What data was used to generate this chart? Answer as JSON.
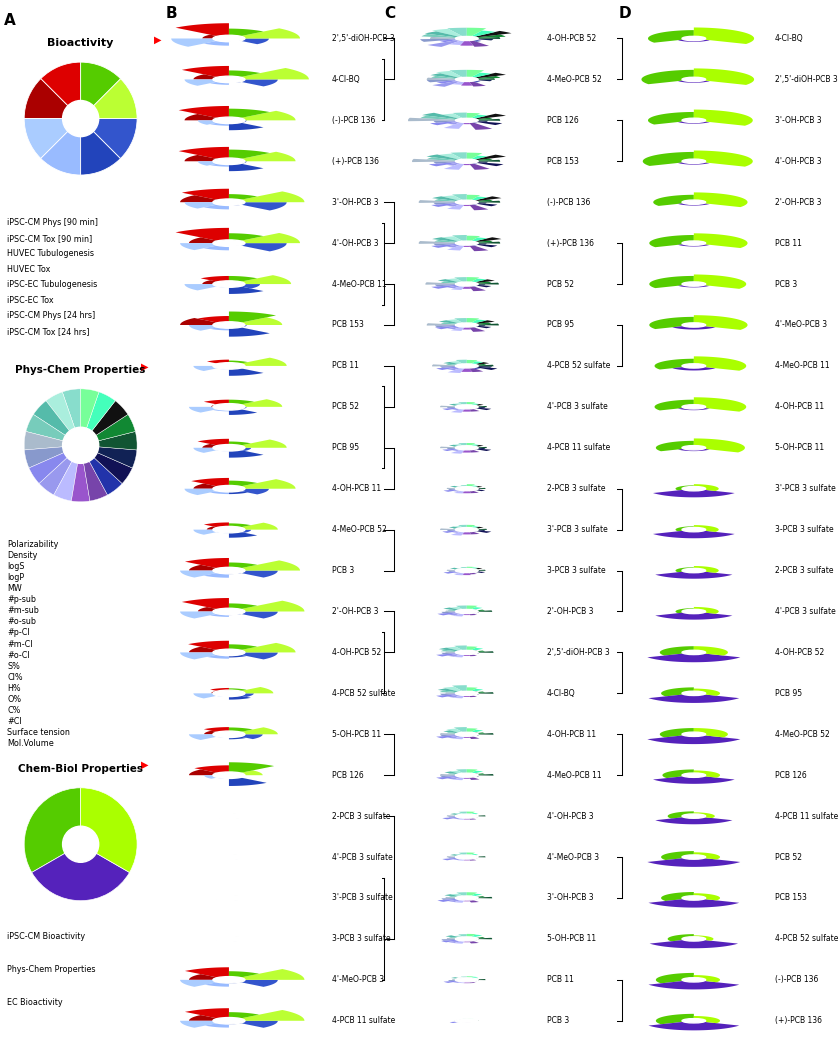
{
  "bioactivity_slices": [
    {
      "label": "iPSC-CM Phys [90 min]",
      "size": 12.5,
      "color": "#DD0000"
    },
    {
      "label": "iPSC-CM Tox [90 min]",
      "size": 12.5,
      "color": "#AA0000"
    },
    {
      "label": "HUVEC Tubulogenesis",
      "size": 12.5,
      "color": "#AACCFF"
    },
    {
      "label": "HUVEC Tox",
      "size": 12.5,
      "color": "#99BBFF"
    },
    {
      "label": "iPSC-EC Tubulogenesis",
      "size": 12.5,
      "color": "#2244BB"
    },
    {
      "label": "iPSC-EC Tox",
      "size": 12.5,
      "color": "#3355CC"
    },
    {
      "label": "iPSC-CM Phys [24 hrs]",
      "size": 12.5,
      "color": "#BBFF33"
    },
    {
      "label": "iPSC-CM Tox [24 hrs]",
      "size": 12.5,
      "color": "#55CC00"
    }
  ],
  "physchem_slices": [
    {
      "label": "Polarizability",
      "color": "#88DDCC"
    },
    {
      "label": "Density",
      "color": "#AAEEDD"
    },
    {
      "label": "logS",
      "color": "#55BBAA"
    },
    {
      "label": "logP",
      "color": "#77CCBB"
    },
    {
      "label": "MW",
      "color": "#AABBCC"
    },
    {
      "label": "#p-sub",
      "color": "#8899CC"
    },
    {
      "label": "#m-sub",
      "color": "#8888EE"
    },
    {
      "label": "#o-sub",
      "color": "#9999EE"
    },
    {
      "label": "#p-Cl",
      "color": "#BBBBFF"
    },
    {
      "label": "#m-Cl",
      "color": "#9955CC"
    },
    {
      "label": "#o-Cl",
      "color": "#7744AA"
    },
    {
      "label": "S%",
      "color": "#2233AA"
    },
    {
      "label": "Cl%",
      "color": "#111155"
    },
    {
      "label": "H%",
      "color": "#112255"
    },
    {
      "label": "O%",
      "color": "#115533"
    },
    {
      "label": "C%",
      "color": "#118833"
    },
    {
      "label": "#Cl",
      "color": "#111111"
    },
    {
      "label": "Surface tension",
      "color": "#44FFBB"
    },
    {
      "label": "Mol.Volume",
      "color": "#77FF99"
    }
  ],
  "chembiol_slices": [
    {
      "label": "iPSC-CM Bioactivity",
      "size": 33.33,
      "color": "#55CC00"
    },
    {
      "label": "Phys-Chem Properties",
      "size": 33.33,
      "color": "#5522BB"
    },
    {
      "label": "EC Bioactivity",
      "size": 33.33,
      "color": "#AAFF00"
    }
  ],
  "panel_B_labels": [
    "2',5'-diOH-PCB 3",
    "4-Cl-BQ",
    "(-)-PCB 136",
    "(+)-PCB 136",
    "3'-OH-PCB 3",
    "4'-OH-PCB 3",
    "4-MeO-PCB 11",
    "PCB 153",
    "PCB 11",
    "PCB 52",
    "PCB 95",
    "4-OH-PCB 11",
    "4-MeO-PCB 52",
    "PCB 3",
    "2'-OH-PCB 3",
    "4-OH-PCB 52",
    "4-PCB 52 sulfate",
    "5-OH-PCB 11",
    "PCB 126",
    "2-PCB 3 sulfate",
    "4'-PCB 3 sulfate",
    "3'-PCB 3 sulfate",
    "3-PCB 3 sulfate",
    "4'-MeO-PCB 3",
    "4-PCB 11 sulfate"
  ],
  "panel_C_labels": [
    "4-OH-PCB 52",
    "4-MeO-PCB 52",
    "PCB 126",
    "PCB 153",
    "(-)-PCB 136",
    "(+)-PCB 136",
    "PCB 52",
    "PCB 95",
    "4-PCB 52 sulfate",
    "4'-PCB 3 sulfate",
    "4-PCB 11 sulfate",
    "2-PCB 3 sulfate",
    "3'-PCB 3 sulfate",
    "3-PCB 3 sulfate",
    "2'-OH-PCB 3",
    "2',5'-diOH-PCB 3",
    "4-Cl-BQ",
    "4-OH-PCB 11",
    "4-MeO-PCB 11",
    "4'-OH-PCB 3",
    "4'-MeO-PCB 3",
    "3'-OH-PCB 3",
    "5-OH-PCB 11",
    "PCB 11",
    "PCB 3"
  ],
  "panel_D_labels": [
    "4-Cl-BQ",
    "2',5'-diOH-PCB 3",
    "3'-OH-PCB 3",
    "4'-OH-PCB 3",
    "2'-OH-PCB 3",
    "PCB 11",
    "PCB 3",
    "4'-MeO-PCB 3",
    "4-MeO-PCB 11",
    "4-OH-PCB 11",
    "5-OH-PCB 11",
    "3'-PCB 3 sulfate",
    "3-PCB 3 sulfate",
    "2-PCB 3 sulfate",
    "4'-PCB 3 sulfate",
    "4-OH-PCB 52",
    "PCB 95",
    "4-MeO-PCB 52",
    "PCB 126",
    "4-PCB 11 sulfate",
    "PCB 52",
    "PCB 153",
    "4-PCB 52 sulfate",
    "(-)-PCB 136",
    "(+)-PCB 136"
  ],
  "bio_colors": [
    "#DD0000",
    "#AA0000",
    "#AACCFF",
    "#99BBFF",
    "#2244BB",
    "#3355CC",
    "#BBFF33",
    "#55CC00"
  ],
  "phys_colors": [
    "#88DDCC",
    "#AAEEDD",
    "#55BBAA",
    "#77CCBB",
    "#AABBCC",
    "#8899CC",
    "#8888EE",
    "#9999EE",
    "#BBBBFF",
    "#9955CC",
    "#7744AA",
    "#2233AA",
    "#111155",
    "#112255",
    "#115533",
    "#118833",
    "#111111",
    "#44FFBB",
    "#77FF99"
  ],
  "comb_colors": [
    "#55CC00",
    "#5522BB",
    "#AAFF00"
  ]
}
